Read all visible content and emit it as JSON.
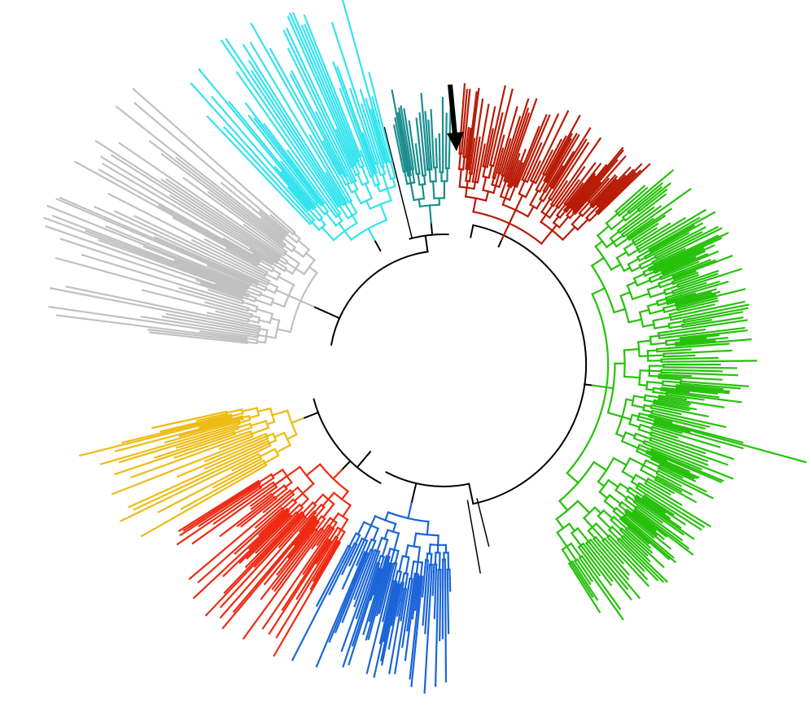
{
  "figure": {
    "type": "circular-phylogenetic-tree",
    "background": "#ffffff",
    "trunk_color": "#000000",
    "marker": {
      "icon": "arrow-down-icon",
      "color": "#000000"
    },
    "clades": [
      {
        "id": "gray",
        "color": "#c0c0c0"
      },
      {
        "id": "cyan",
        "color": "#33e3ee"
      },
      {
        "id": "teal",
        "color": "#1b8e8e"
      },
      {
        "id": "dark-red",
        "color": "#b81b06"
      },
      {
        "id": "green",
        "color": "#27c10c"
      },
      {
        "id": "blue",
        "color": "#1b65d8"
      },
      {
        "id": "red",
        "color": "#ee2a12"
      },
      {
        "id": "yellow",
        "color": "#eebb12"
      }
    ]
  }
}
